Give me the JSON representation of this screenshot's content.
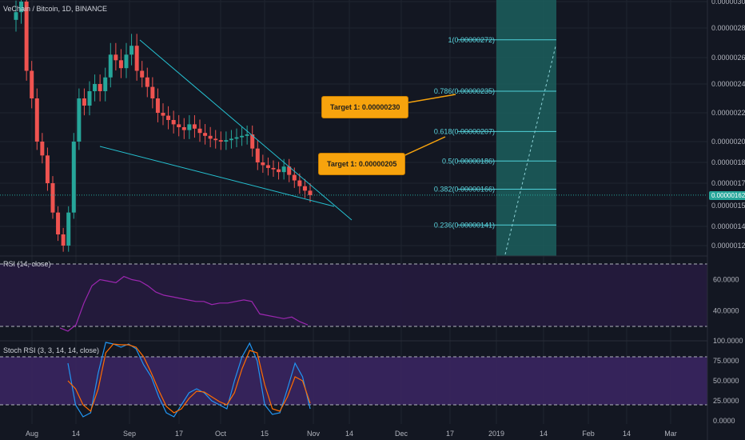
{
  "header": {
    "symbol": "VeChain / Bitcoin, 1D, BINANCE"
  },
  "panes": {
    "rsi_title": "RSI (14, close)",
    "stoch_title": "Stoch RSI (3, 3, 14, 14, close)"
  },
  "callouts": [
    {
      "text": "Target 1: 0.00000230"
    },
    {
      "text": "Target 1: 0.00000205"
    }
  ],
  "current_price": "0.00000162",
  "chart_data": [
    {
      "type": "candlestick",
      "title": "VeChain / Bitcoin, 1D, BINANCE",
      "x_ticks": [
        "Aug",
        "14",
        "Sep",
        "17",
        "Oct",
        "15",
        "Nov",
        "14",
        "Dec",
        "17",
        "2019",
        "14",
        "Feb",
        "14",
        "Mar"
      ],
      "y_ticks": [
        "0.00000300",
        "0.00000280",
        "0.00000260",
        "0.00000240",
        "0.00000220",
        "0.00000200",
        "0.00000185",
        "0.00000170",
        "0.00000155",
        "0.00000140",
        "0.00000128"
      ],
      "fib_levels": [
        {
          "label": "1(0.00000272)",
          "value": 2.72e-06
        },
        {
          "label": "0.786(0.00000235)",
          "value": 2.35e-06
        },
        {
          "label": "0.618(0.00000207)",
          "value": 2.07e-06
        },
        {
          "label": "0.5(0.00000186)",
          "value": 1.86e-06
        },
        {
          "label": "0.382(0.00000166)",
          "value": 1.66e-06
        },
        {
          "label": "0.236(0.00000141)",
          "value": 1.41e-06
        }
      ],
      "close_series": [
        2.92e-06,
        3e-06,
        2.5e-06,
        2.3e-06,
        2e-06,
        1.9e-06,
        1.7e-06,
        1.5e-06,
        1.35e-06,
        1.28e-06,
        1.5e-06,
        2e-06,
        2.3e-06,
        2.25e-06,
        2.35e-06,
        2.4e-06,
        2.35e-06,
        2.45e-06,
        2.62e-06,
        2.58e-06,
        2.52e-06,
        2.62e-06,
        2.68e-06,
        2.5e-06,
        2.45e-06,
        2.38e-06,
        2.3e-06,
        2.2e-06,
        2.18e-06,
        2.15e-06,
        2.12e-06,
        2.1e-06,
        2.08e-06,
        2.12e-06,
        2.09e-06,
        2.06e-06,
        2.04e-06,
        2.02e-06,
        2.01e-06,
        2e-06,
        2.01e-06,
        2.02e-06,
        2.03e-06,
        2.04e-06,
        2.05e-06,
        1.95e-06,
        1.85e-06,
        1.83e-06,
        1.81e-06,
        1.8e-06,
        1.78e-06,
        1.82e-06,
        1.76e-06,
        1.72e-06,
        1.68e-06,
        1.65e-06,
        1.62e-06
      ]
    },
    {
      "type": "line",
      "title": "RSI (14, close)",
      "y_ticks": [
        "60.0000",
        "40.0000"
      ],
      "values": [
        29,
        27,
        31,
        45,
        56,
        60,
        59,
        58,
        62,
        60,
        59,
        56,
        52,
        50,
        49,
        48,
        47,
        46,
        46,
        44,
        45,
        45,
        46,
        47,
        46,
        38,
        37,
        36,
        35,
        36,
        33,
        31
      ]
    },
    {
      "type": "line",
      "title": "Stoch RSI (3, 3, 14, 14, close)",
      "y_ticks": [
        "100.0000",
        "75.0000",
        "50.0000",
        "25.0000",
        "0.0000"
      ],
      "series": [
        {
          "values": [
            72,
            20,
            5,
            10,
            60,
            98,
            96,
            92,
            96,
            90,
            70,
            55,
            30,
            10,
            5,
            20,
            35,
            40,
            35,
            25,
            20,
            15,
            50,
            80,
            97,
            75,
            20,
            8,
            10,
            40,
            72,
            55,
            15
          ]
        },
        {
          "values": [
            50,
            40,
            20,
            12,
            40,
            85,
            96,
            95,
            95,
            92,
            80,
            60,
            38,
            18,
            10,
            15,
            28,
            37,
            36,
            30,
            24,
            20,
            35,
            65,
            88,
            85,
            45,
            15,
            12,
            30,
            55,
            50,
            22
          ]
        }
      ]
    }
  ]
}
